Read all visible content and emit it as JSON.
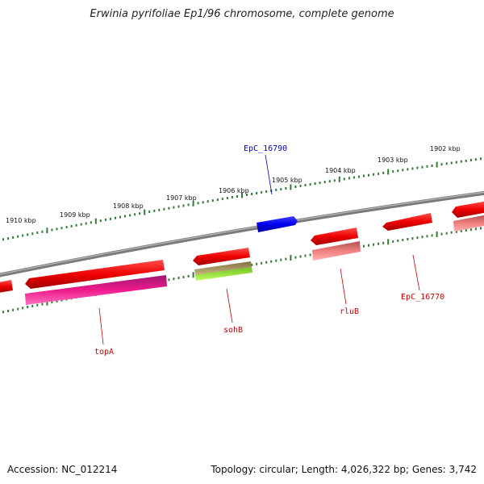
{
  "title": "Erwinia pyrifoliae Ep1/96 chromosome, complete genome",
  "footer": {
    "accession": "Accession: NC_012214",
    "summary": "Topology: circular; Length: 4,026,322 bp; Genes: 3,742"
  },
  "scale": {
    "unit": "kbp",
    "ticks": [
      {
        "label": "1910 kbp",
        "kbp": 1910
      },
      {
        "label": "1909 kbp",
        "kbp": 1909
      },
      {
        "label": "1908 kbp",
        "kbp": 1908
      },
      {
        "label": "1907 kbp",
        "kbp": 1907
      },
      {
        "label": "1906 kbp",
        "kbp": 1906
      },
      {
        "label": "1905 kbp",
        "kbp": 1905
      },
      {
        "label": "1904 kbp",
        "kbp": 1904
      },
      {
        "label": "1903 kbp",
        "kbp": 1903
      },
      {
        "label": "1902 kbp",
        "kbp": 1902
      }
    ]
  },
  "gene_labels": [
    {
      "name": "EpC_16790",
      "color": "#0000cc"
    },
    {
      "name": "topA",
      "color": "#cc0000"
    },
    {
      "name": "sohB",
      "color": "#cc0000"
    },
    {
      "name": "rluB",
      "color": "#cc0000"
    },
    {
      "name": "EpC_16770",
      "color": "#cc0000"
    }
  ],
  "colors": {
    "backbone": "#808080",
    "tick_green": "#2e7d32",
    "forward_gene_blue": "#0000ee",
    "reverse_gene_red": "#ee0000",
    "magenta_feature": "#ee1a8c",
    "pink_feature": "#f08080",
    "olive_feature": "#b0a060",
    "lime_feature": "#a0ee40"
  }
}
